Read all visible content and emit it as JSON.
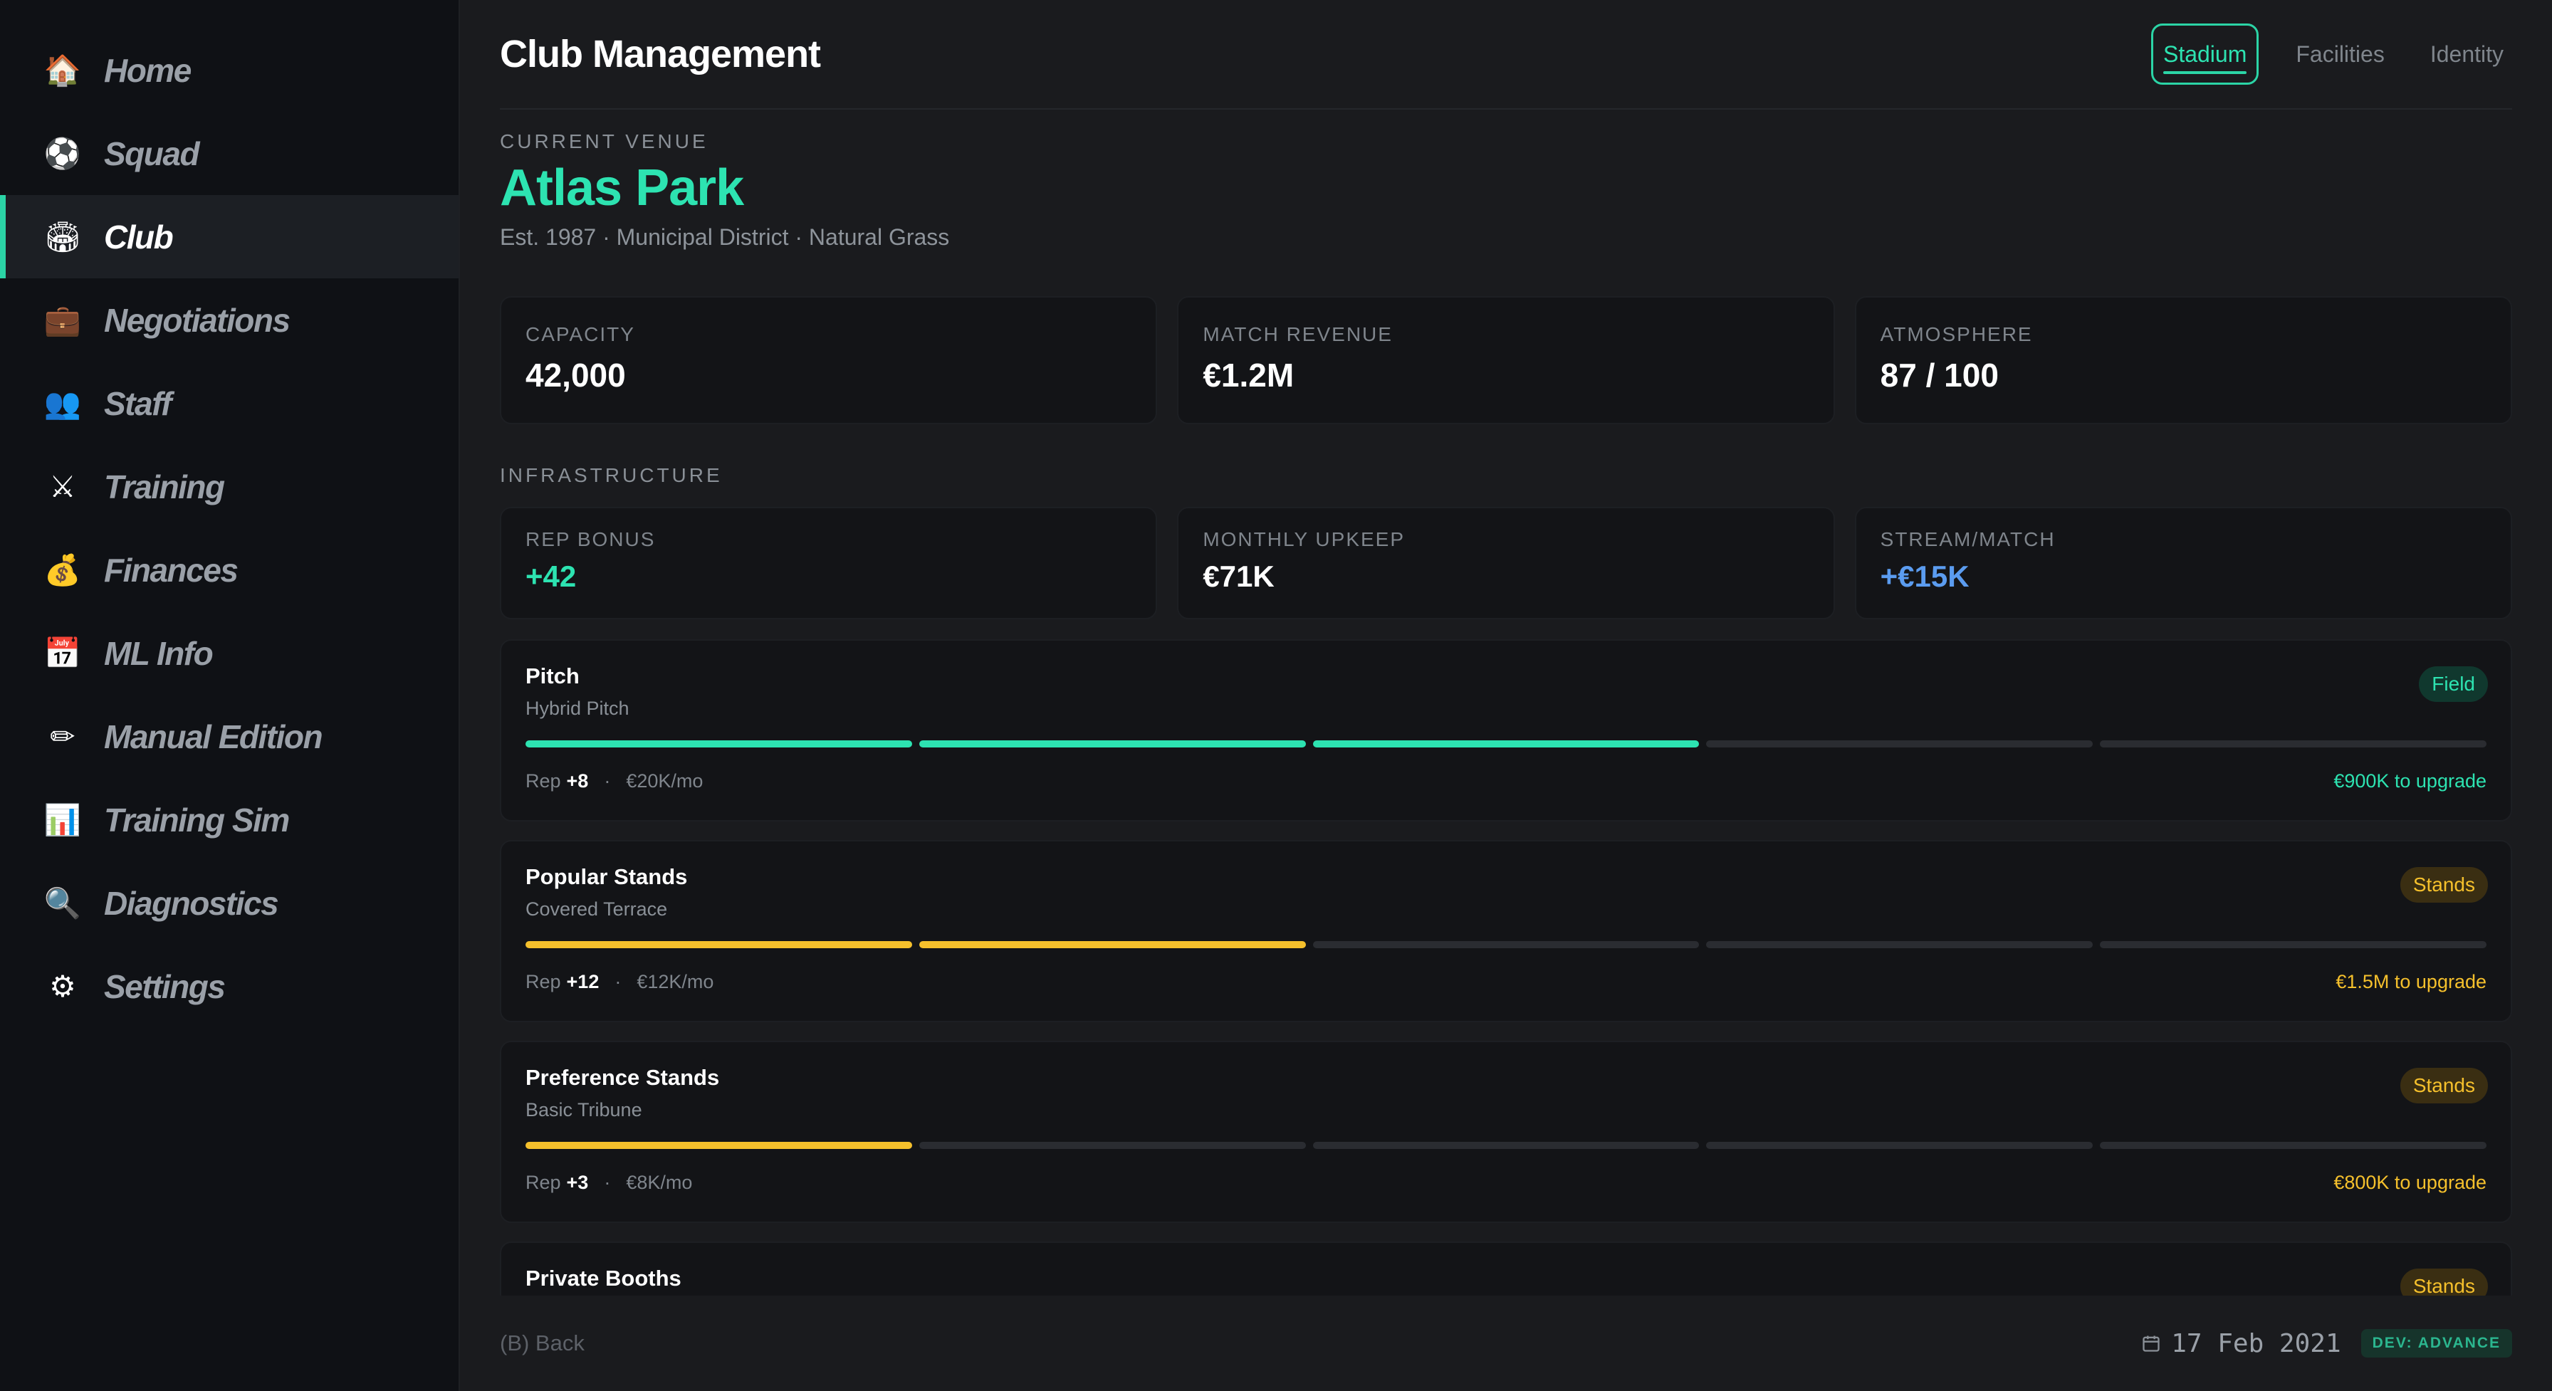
{
  "sidebar": {
    "items": [
      {
        "label": "Home",
        "icon": "🏠"
      },
      {
        "label": "Squad",
        "icon": "⚽"
      },
      {
        "label": "Club",
        "icon": "🏟"
      },
      {
        "label": "Negotiations",
        "icon": "💼"
      },
      {
        "label": "Staff",
        "icon": "👥"
      },
      {
        "label": "Training",
        "icon": "⚔"
      },
      {
        "label": "Finances",
        "icon": "💰"
      },
      {
        "label": "ML Info",
        "icon": "📅"
      },
      {
        "label": "Manual Edition",
        "icon": "✏"
      },
      {
        "label": "Training Sim",
        "icon": "📊"
      },
      {
        "label": "Diagnostics",
        "icon": "🔍"
      },
      {
        "label": "Settings",
        "icon": "⚙"
      }
    ],
    "active_index": 2
  },
  "header": {
    "title": "Club Management",
    "tabs": [
      {
        "label": "Stadium",
        "active": true
      },
      {
        "label": "Facilities",
        "active": false
      },
      {
        "label": "Identity",
        "active": false
      }
    ]
  },
  "venue": {
    "section_label": "CURRENT VENUE",
    "name": "Atlas Park",
    "subtitle": "Est. 1987 · Municipal District · Natural Grass"
  },
  "stats": [
    {
      "label": "CAPACITY",
      "value": "42,000"
    },
    {
      "label": "MATCH REVENUE",
      "value": "€1.2M"
    },
    {
      "label": "ATMOSPHERE",
      "value": "87 / 100"
    }
  ],
  "infrastructure": {
    "section_label": "INFRASTRUCTURE",
    "stats": [
      {
        "label": "REP BONUS",
        "value": "+42",
        "color": "#2de3b1"
      },
      {
        "label": "MONTHLY UPKEEP",
        "value": "€71K",
        "color": "#ffffff"
      },
      {
        "label": "STREAM/MATCH",
        "value": "+€15K",
        "color": "#5b9cf0"
      }
    ]
  },
  "facilities": [
    {
      "name": "Pitch",
      "type": "Hybrid Pitch",
      "badge": "Field",
      "level": 3,
      "max_level": 5,
      "rep_label": "Rep",
      "rep_value": "+8",
      "upkeep": "€20K/mo",
      "upgrade": "€900K to upgrade",
      "color": "#2de3b1",
      "badge_bg": "#10382e"
    },
    {
      "name": "Popular Stands",
      "type": "Covered Terrace",
      "badge": "Stands",
      "level": 2,
      "max_level": 5,
      "rep_label": "Rep",
      "rep_value": "+12",
      "upkeep": "€12K/mo",
      "upgrade": "€1.5M to upgrade",
      "color": "#f5c02c",
      "badge_bg": "#3a2e12"
    },
    {
      "name": "Preference Stands",
      "type": "Basic Tribune",
      "badge": "Stands",
      "level": 1,
      "max_level": 5,
      "rep_label": "Rep",
      "rep_value": "+3",
      "upkeep": "€8K/mo",
      "upgrade": "€800K to upgrade",
      "color": "#f5c02c",
      "badge_bg": "#3a2e12"
    },
    {
      "name": "Private Booths",
      "type": "",
      "badge": "Stands",
      "level": 0,
      "max_level": 5,
      "rep_label": "",
      "rep_value": "",
      "upkeep": "",
      "upgrade": "",
      "color": "#f5c02c",
      "badge_bg": "#3a2e12"
    }
  ],
  "footer": {
    "back_hint": "(B) Back",
    "date": "17 Feb 2021",
    "dev_badge": "DEV: ADVANCE",
    "calendar_icon": "calendar-icon"
  },
  "colors": {
    "accent": "#2de3b1",
    "gold": "#f5c02c",
    "blue": "#5b9cf0"
  }
}
